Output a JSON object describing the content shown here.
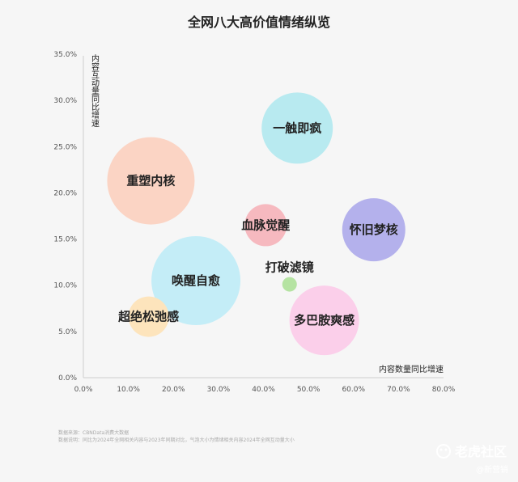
{
  "chart_data": {
    "type": "bubble",
    "title": "全网八大高价值情绪纵览",
    "xlabel": "内容数量同比增速",
    "ylabel": "内容互动量同比增速",
    "xlim": [
      0,
      80
    ],
    "ylim": [
      0,
      35
    ],
    "x_ticks": [
      "0.0%",
      "10.0%",
      "20.0%",
      "30.0%",
      "40.0%",
      "50.0%",
      "60.0%",
      "70.0%",
      "80.0%"
    ],
    "y_ticks": [
      "0.0%",
      "5.0%",
      "10.0%",
      "15.0%",
      "20.0%",
      "25.0%",
      "30.0%",
      "35.0%"
    ],
    "points": [
      {
        "label": "一触即疯",
        "x": 47.5,
        "y": 27.0,
        "size": 44,
        "color": "#b8eaf0"
      },
      {
        "label": "重塑内核",
        "x": 15.0,
        "y": 21.3,
        "size": 54,
        "color": "#fbd4c4"
      },
      {
        "label": "怀旧梦核",
        "x": 64.5,
        "y": 16.0,
        "size": 39,
        "color": "#b4b1ec"
      },
      {
        "label": "血脉觉醒",
        "x": 40.5,
        "y": 16.5,
        "size": 26,
        "color": "#f6b9bf"
      },
      {
        "label": "唤醒自愈",
        "x": 25.0,
        "y": 10.5,
        "size": 55,
        "color": "#c4edf7"
      },
      {
        "label": "打破滤镜",
        "x": 45.8,
        "y": 10.1,
        "size": 9,
        "color": "#b5e3a2"
      },
      {
        "label": "多巴胺爽感",
        "x": 53.5,
        "y": 6.2,
        "size": 43,
        "color": "#fbcfea"
      },
      {
        "label": "超绝松弛感",
        "x": 14.5,
        "y": 6.6,
        "size": 25,
        "color": "#fde4bc"
      }
    ]
  },
  "footnotes": [
    "数据来源：CBNData消费大数据",
    "数据说明：同比为2024年全网相关内容与2023年同期对比，气泡大小为情绪相关内容2024年全网互动量大小"
  ],
  "watermark": {
    "brand": "老虎社区",
    "handle": "@新营销"
  }
}
